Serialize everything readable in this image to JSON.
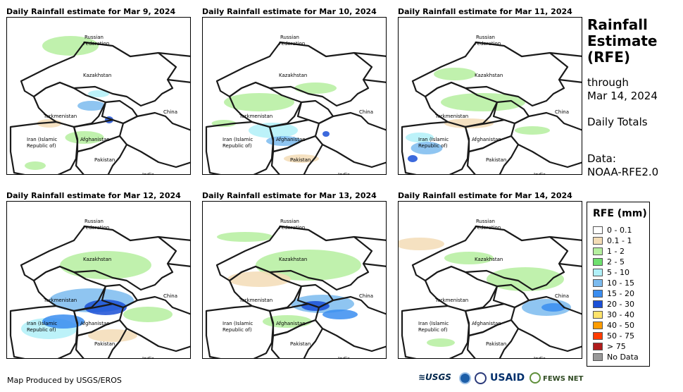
{
  "panels": [
    {
      "title": "Daily Rainfall estimate for Mar 9, 2024"
    },
    {
      "title": "Daily Rainfall estimate for Mar 10, 2024"
    },
    {
      "title": "Daily Rainfall estimate for Mar 11, 2024"
    },
    {
      "title": "Daily Rainfall estimate for Mar 12, 2024"
    },
    {
      "title": "Daily Rainfall estimate for Mar 13, 2024"
    },
    {
      "title": "Daily Rainfall estimate for Mar 14, 2024"
    }
  ],
  "map_labels": {
    "russia": "Russian",
    "russia2": "Federation",
    "kazakhstan": "Kazakhstan",
    "turkmenistan": "Turkmenistan",
    "china": "China",
    "iran": "Iran  (Islamic",
    "iran2": "Republic of)",
    "afghanistan": "Afghanistan",
    "pakistan": "Pakistan",
    "india": "India"
  },
  "side": {
    "title1": "Rainfall",
    "title2": "Estimate",
    "title3": "(RFE)",
    "through": "through",
    "date": "Mar 14, 2024",
    "totals": "Daily Totals",
    "data_label": "Data:",
    "data_source": "NOAA-RFE2.0"
  },
  "legend": {
    "title": "RFE (mm)",
    "items": [
      {
        "label": "0 - 0.1",
        "color": "#ffffff"
      },
      {
        "label": "0.1 - 1",
        "color": "#f3dcb6"
      },
      {
        "label": "1 - 2",
        "color": "#b5ef9f"
      },
      {
        "label": "2 - 5",
        "color": "#6fe06f"
      },
      {
        "label": "5 - 10",
        "color": "#b0f0f8"
      },
      {
        "label": "10 - 15",
        "color": "#7bbbef"
      },
      {
        "label": "15 - 20",
        "color": "#3a8df0"
      },
      {
        "label": "20 - 30",
        "color": "#1a4fd6"
      },
      {
        "label": "30 - 40",
        "color": "#ffe36b"
      },
      {
        "label": "40 - 50",
        "color": "#ff9c00"
      },
      {
        "label": "50 - 75",
        "color": "#ff3c00"
      },
      {
        "label": "> 75",
        "color": "#b01c1c"
      },
      {
        "label": "No Data",
        "color": "#999999"
      }
    ]
  },
  "footer": {
    "credit": "Map Produced by USGS/EROS"
  },
  "logos": {
    "usgs": "≋USGS",
    "usaid": "USAID",
    "fews": "FEWS NET"
  }
}
